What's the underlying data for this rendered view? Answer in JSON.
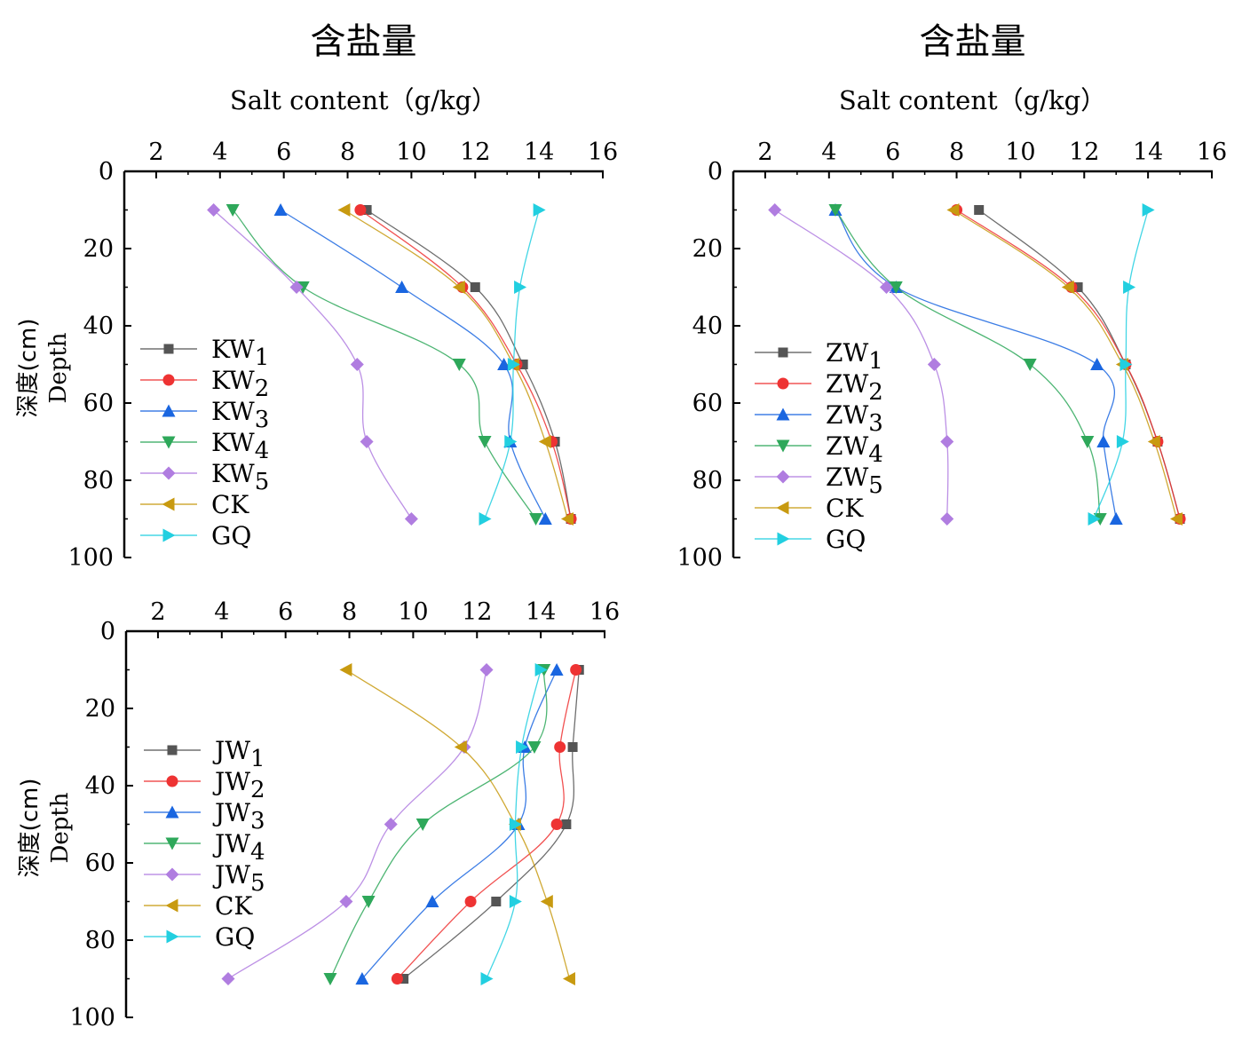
{
  "chart_data": [
    {
      "type": "line",
      "title": "含盐量",
      "xlabel": "Salt content（g/kg）",
      "ylabel_cn": "深度(cm)",
      "ylabel_en": "Depth",
      "xlim": [
        1,
        16
      ],
      "ylim": [
        0,
        100
      ],
      "xticks": [
        "2",
        "4",
        "6",
        "8",
        "10",
        "12",
        "14",
        "16"
      ],
      "yticks": [
        "0",
        "20",
        "40",
        "60",
        "80",
        "100"
      ],
      "depths": [
        10,
        30,
        50,
        70,
        90
      ],
      "series": [
        {
          "name": "KW",
          "sub": "1",
          "color": "#555555",
          "marker": "square",
          "values": [
            8.6,
            12.0,
            13.5,
            14.5,
            15.0
          ]
        },
        {
          "name": "KW",
          "sub": "2",
          "color": "#ee3333",
          "marker": "circle",
          "values": [
            8.4,
            11.6,
            13.3,
            14.4,
            15.0
          ]
        },
        {
          "name": "KW",
          "sub": "3",
          "color": "#1a66e0",
          "marker": "triangle-up",
          "values": [
            5.9,
            9.7,
            12.9,
            13.1,
            14.2
          ]
        },
        {
          "name": "KW",
          "sub": "4",
          "color": "#2ea85a",
          "marker": "triangle-down",
          "values": [
            4.4,
            6.6,
            11.5,
            12.3,
            13.9
          ]
        },
        {
          "name": "KW",
          "sub": "5",
          "color": "#b07de0",
          "marker": "diamond",
          "values": [
            3.8,
            6.4,
            8.3,
            8.6,
            10.0
          ]
        },
        {
          "name": "CK",
          "sub": "",
          "color": "#c89a10",
          "marker": "triangle-left",
          "values": [
            7.9,
            11.5,
            13.2,
            14.2,
            14.9
          ]
        },
        {
          "name": "GQ",
          "sub": "",
          "color": "#22cfe0",
          "marker": "triangle-right",
          "values": [
            14.0,
            13.4,
            13.2,
            13.1,
            12.3
          ]
        }
      ]
    },
    {
      "type": "line",
      "title": "含盐量",
      "xlabel": "Salt content（g/kg）",
      "xlim": [
        1,
        16
      ],
      "ylim": [
        0,
        100
      ],
      "xticks": [
        "2",
        "4",
        "6",
        "8",
        "10",
        "12",
        "14",
        "16"
      ],
      "yticks": [
        "0",
        "20",
        "40",
        "60",
        "80",
        "100"
      ],
      "depths": [
        10,
        30,
        50,
        70,
        90
      ],
      "series": [
        {
          "name": "ZW",
          "sub": "1",
          "color": "#555555",
          "marker": "square",
          "values": [
            8.7,
            11.8,
            13.3,
            14.3,
            15.0
          ]
        },
        {
          "name": "ZW",
          "sub": "2",
          "color": "#ee3333",
          "marker": "circle",
          "values": [
            8.0,
            11.6,
            13.3,
            14.3,
            15.0
          ]
        },
        {
          "name": "ZW",
          "sub": "3",
          "color": "#1a66e0",
          "marker": "triangle-up",
          "values": [
            4.2,
            6.1,
            12.4,
            12.6,
            13.0
          ]
        },
        {
          "name": "ZW",
          "sub": "4",
          "color": "#2ea85a",
          "marker": "triangle-down",
          "values": [
            4.2,
            6.1,
            10.3,
            12.1,
            12.5
          ]
        },
        {
          "name": "ZW",
          "sub": "5",
          "color": "#b07de0",
          "marker": "diamond",
          "values": [
            2.3,
            5.8,
            7.3,
            7.7,
            7.7
          ]
        },
        {
          "name": "CK",
          "sub": "",
          "color": "#c89a10",
          "marker": "triangle-left",
          "values": [
            7.9,
            11.5,
            13.2,
            14.2,
            14.9
          ]
        },
        {
          "name": "GQ",
          "sub": "",
          "color": "#22cfe0",
          "marker": "triangle-right",
          "values": [
            14.0,
            13.4,
            13.3,
            13.2,
            12.3
          ]
        }
      ]
    },
    {
      "type": "line",
      "title": "",
      "xlabel": "",
      "ylabel_cn": "深度(cm)",
      "ylabel_en": "Depth",
      "xlim": [
        1,
        16
      ],
      "ylim": [
        0,
        100
      ],
      "xticks": [
        "2",
        "4",
        "6",
        "8",
        "10",
        "12",
        "14",
        "16"
      ],
      "yticks": [
        "0",
        "20",
        "40",
        "60",
        "80",
        "100"
      ],
      "depths": [
        10,
        30,
        50,
        70,
        90
      ],
      "series": [
        {
          "name": "JW",
          "sub": "1",
          "color": "#555555",
          "marker": "square",
          "values": [
            15.2,
            15.0,
            14.8,
            12.6,
            9.7
          ]
        },
        {
          "name": "JW",
          "sub": "2",
          "color": "#ee3333",
          "marker": "circle",
          "values": [
            15.1,
            14.6,
            14.5,
            11.8,
            9.5
          ]
        },
        {
          "name": "JW",
          "sub": "3",
          "color": "#1a66e0",
          "marker": "triangle-up",
          "values": [
            14.5,
            13.5,
            13.3,
            10.6,
            8.4
          ]
        },
        {
          "name": "JW",
          "sub": "4",
          "color": "#2ea85a",
          "marker": "triangle-down",
          "values": [
            14.1,
            13.8,
            10.3,
            8.6,
            7.4
          ]
        },
        {
          "name": "JW",
          "sub": "5",
          "color": "#b07de0",
          "marker": "diamond",
          "values": [
            12.3,
            11.6,
            9.3,
            7.9,
            4.2
          ]
        },
        {
          "name": "CK",
          "sub": "",
          "color": "#c89a10",
          "marker": "triangle-left",
          "values": [
            7.9,
            11.5,
            13.2,
            14.2,
            14.9
          ]
        },
        {
          "name": "GQ",
          "sub": "",
          "color": "#22cfe0",
          "marker": "triangle-right",
          "values": [
            14.0,
            13.4,
            13.2,
            13.2,
            12.3
          ]
        }
      ]
    }
  ]
}
